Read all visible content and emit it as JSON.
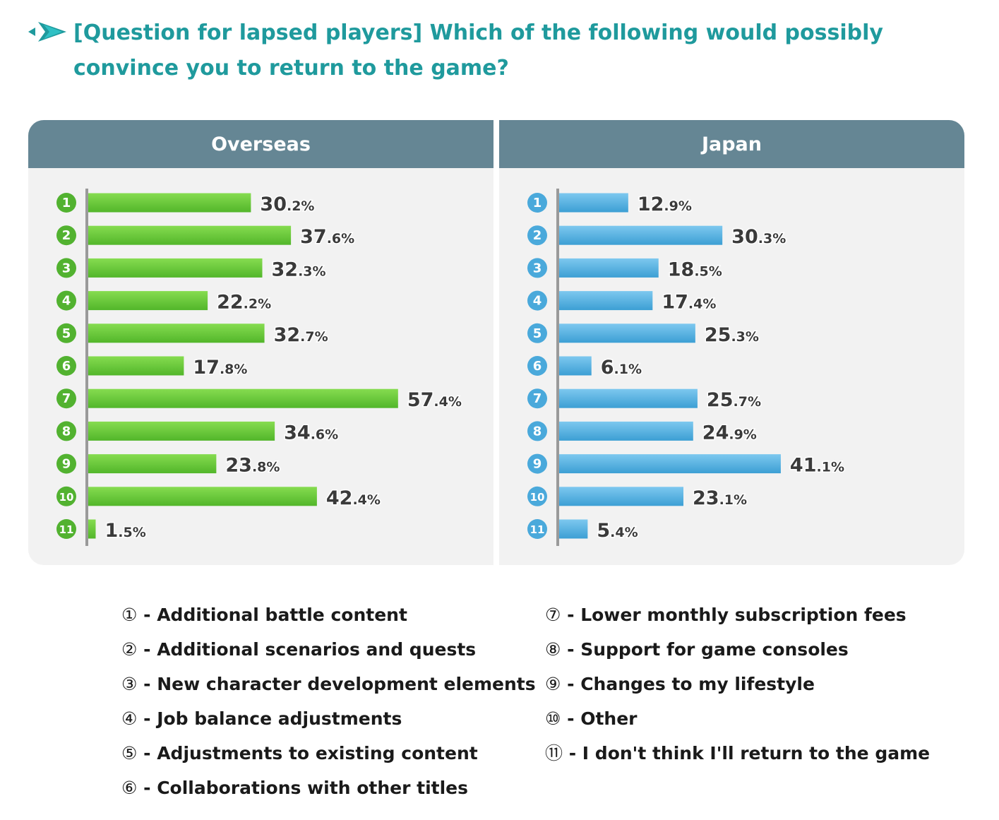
{
  "header": {
    "title": "[Question for lapsed players] Which of the following would possibly convince you to return to the game?",
    "icon": "arrow-bullet-icon"
  },
  "colors": {
    "title": "#1f9a9d",
    "header_bg": "#658694",
    "panel_bg": "#f2f2f2",
    "overseas_bar": "#6ecc3a",
    "japan_bar": "#5cb3e0"
  },
  "chart_data": [
    {
      "type": "bar",
      "orientation": "horizontal",
      "title": "Overseas",
      "categories": [
        "1",
        "2",
        "3",
        "4",
        "5",
        "6",
        "7",
        "8",
        "9",
        "10",
        "11"
      ],
      "values": [
        30.2,
        37.6,
        32.3,
        22.2,
        32.7,
        17.8,
        57.4,
        34.6,
        23.8,
        42.4,
        1.5
      ],
      "unit": "%",
      "xlim": [
        0,
        80
      ]
    },
    {
      "type": "bar",
      "orientation": "horizontal",
      "title": "Japan",
      "categories": [
        "1",
        "2",
        "3",
        "4",
        "5",
        "6",
        "7",
        "8",
        "9",
        "10",
        "11"
      ],
      "values": [
        12.9,
        30.3,
        18.5,
        17.4,
        25.3,
        6.1,
        25.7,
        24.9,
        41.1,
        23.1,
        5.4
      ],
      "unit": "%",
      "xlim": [
        0,
        80
      ]
    }
  ],
  "legend": {
    "col1": [
      {
        "num": "①",
        "label": " - Additional battle content"
      },
      {
        "num": "②",
        "label": " - Additional scenarios and quests"
      },
      {
        "num": "③",
        "label": " - New character development elements"
      },
      {
        "num": "④",
        "label": " - Job balance adjustments"
      },
      {
        "num": "⑤",
        "label": " - Adjustments to existing content"
      },
      {
        "num": "⑥",
        "label": " - Collaborations with other titles"
      }
    ],
    "col2": [
      {
        "num": "⑦",
        "label": " - Lower monthly subscription fees"
      },
      {
        "num": "⑧",
        "label": " - Support for game consoles"
      },
      {
        "num": "⑨",
        "label": " - Changes to my lifestyle"
      },
      {
        "num": "⑩",
        "label": " - Other"
      },
      {
        "num": "⑪",
        "label": " - I don't think I'll return to the game"
      }
    ]
  }
}
